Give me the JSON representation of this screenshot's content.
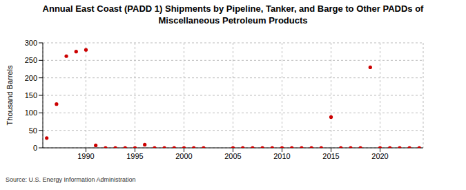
{
  "chart_data": {
    "type": "scatter",
    "title": "Annual East Coast (PADD 1) Shipments by Pipeline, Tanker, and Barge to Other PADDs of Miscellaneous Petroleum Products",
    "y_label": "Thousand Barrels",
    "source": "Source: U.S. Energy Information Administration",
    "x": [
      1986,
      1987,
      1988,
      1989,
      1990,
      1991,
      1992,
      1993,
      1994,
      1995,
      1996,
      1997,
      1998,
      1999,
      2000,
      2001,
      2002,
      2005,
      2006,
      2007,
      2008,
      2009,
      2010,
      2011,
      2012,
      2013,
      2014,
      2015,
      2016,
      2017,
      2018,
      2019,
      2020,
      2021,
      2022,
      2023,
      2024
    ],
    "values": [
      28,
      125,
      262,
      275,
      280,
      7,
      0,
      0,
      0,
      0,
      9,
      0,
      0,
      0,
      0,
      0,
      0,
      0,
      0,
      0,
      0,
      0,
      0,
      0,
      0,
      0,
      0,
      88,
      0,
      0,
      0,
      230,
      0,
      0,
      0,
      0,
      0
    ],
    "color": "#cc0000",
    "marker": "circle",
    "xlim": [
      1985.6,
      2024.4
    ],
    "xticks": [
      1990,
      1995,
      2000,
      2005,
      2010,
      2015,
      2020
    ],
    "ylim": [
      0,
      300
    ],
    "yticks": [
      0,
      50,
      100,
      150,
      200,
      250,
      300
    ],
    "grid": true
  }
}
